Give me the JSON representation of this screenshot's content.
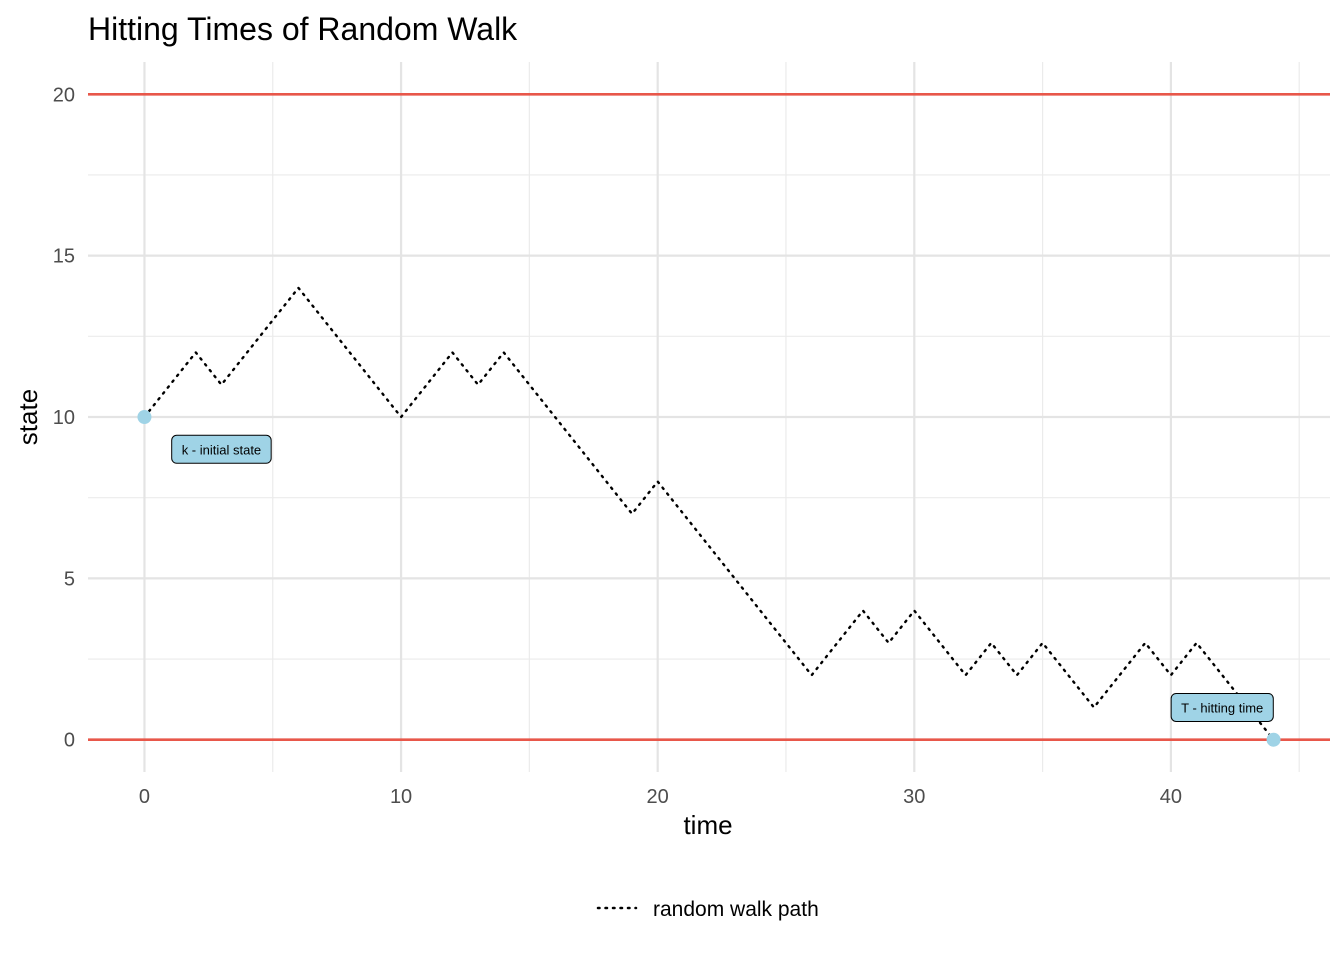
{
  "chart_data": {
    "type": "line",
    "title": "Hitting Times of Random Walk",
    "xlabel": "time",
    "ylabel": "state",
    "xlim": [
      -2.2,
      46.2
    ],
    "ylim": [
      -1,
      21
    ],
    "x_ticks": [
      0,
      10,
      20,
      30,
      40
    ],
    "y_ticks": [
      0,
      5,
      10,
      15,
      20
    ],
    "grid": true,
    "legend_position": "bottom",
    "series": [
      {
        "name": "random walk path",
        "style": "dotted",
        "color": "#000000",
        "x": [
          0,
          1,
          2,
          3,
          4,
          5,
          6,
          7,
          8,
          9,
          10,
          11,
          12,
          13,
          14,
          15,
          16,
          17,
          18,
          19,
          20,
          21,
          22,
          23,
          24,
          25,
          26,
          27,
          28,
          29,
          30,
          31,
          32,
          33,
          34,
          35,
          36,
          37,
          38,
          39,
          40,
          41,
          42,
          43,
          44
        ],
        "y": [
          10,
          11,
          12,
          11,
          12,
          13,
          14,
          13,
          12,
          11,
          10,
          11,
          12,
          11,
          12,
          11,
          10,
          9,
          8,
          7,
          8,
          7,
          6,
          5,
          4,
          3,
          2,
          3,
          4,
          3,
          4,
          3,
          2,
          3,
          2,
          3,
          2,
          1,
          2,
          3,
          2,
          3,
          2,
          1,
          0
        ]
      }
    ],
    "boundaries": [
      {
        "y": 20,
        "color": "#e8574a"
      },
      {
        "y": 0,
        "color": "#e8574a"
      }
    ],
    "points": [
      {
        "x": 0,
        "y": 10,
        "color": "#9fd3e6"
      },
      {
        "x": 44,
        "y": 0,
        "color": "#9fd3e6"
      }
    ],
    "annotations": [
      {
        "text": "k - initial state",
        "x": 3,
        "y": 9,
        "fill": "#9fd3e6"
      },
      {
        "text": "T - hitting time",
        "x": 42,
        "y": 1,
        "fill": "#9fd3e6"
      }
    ]
  }
}
